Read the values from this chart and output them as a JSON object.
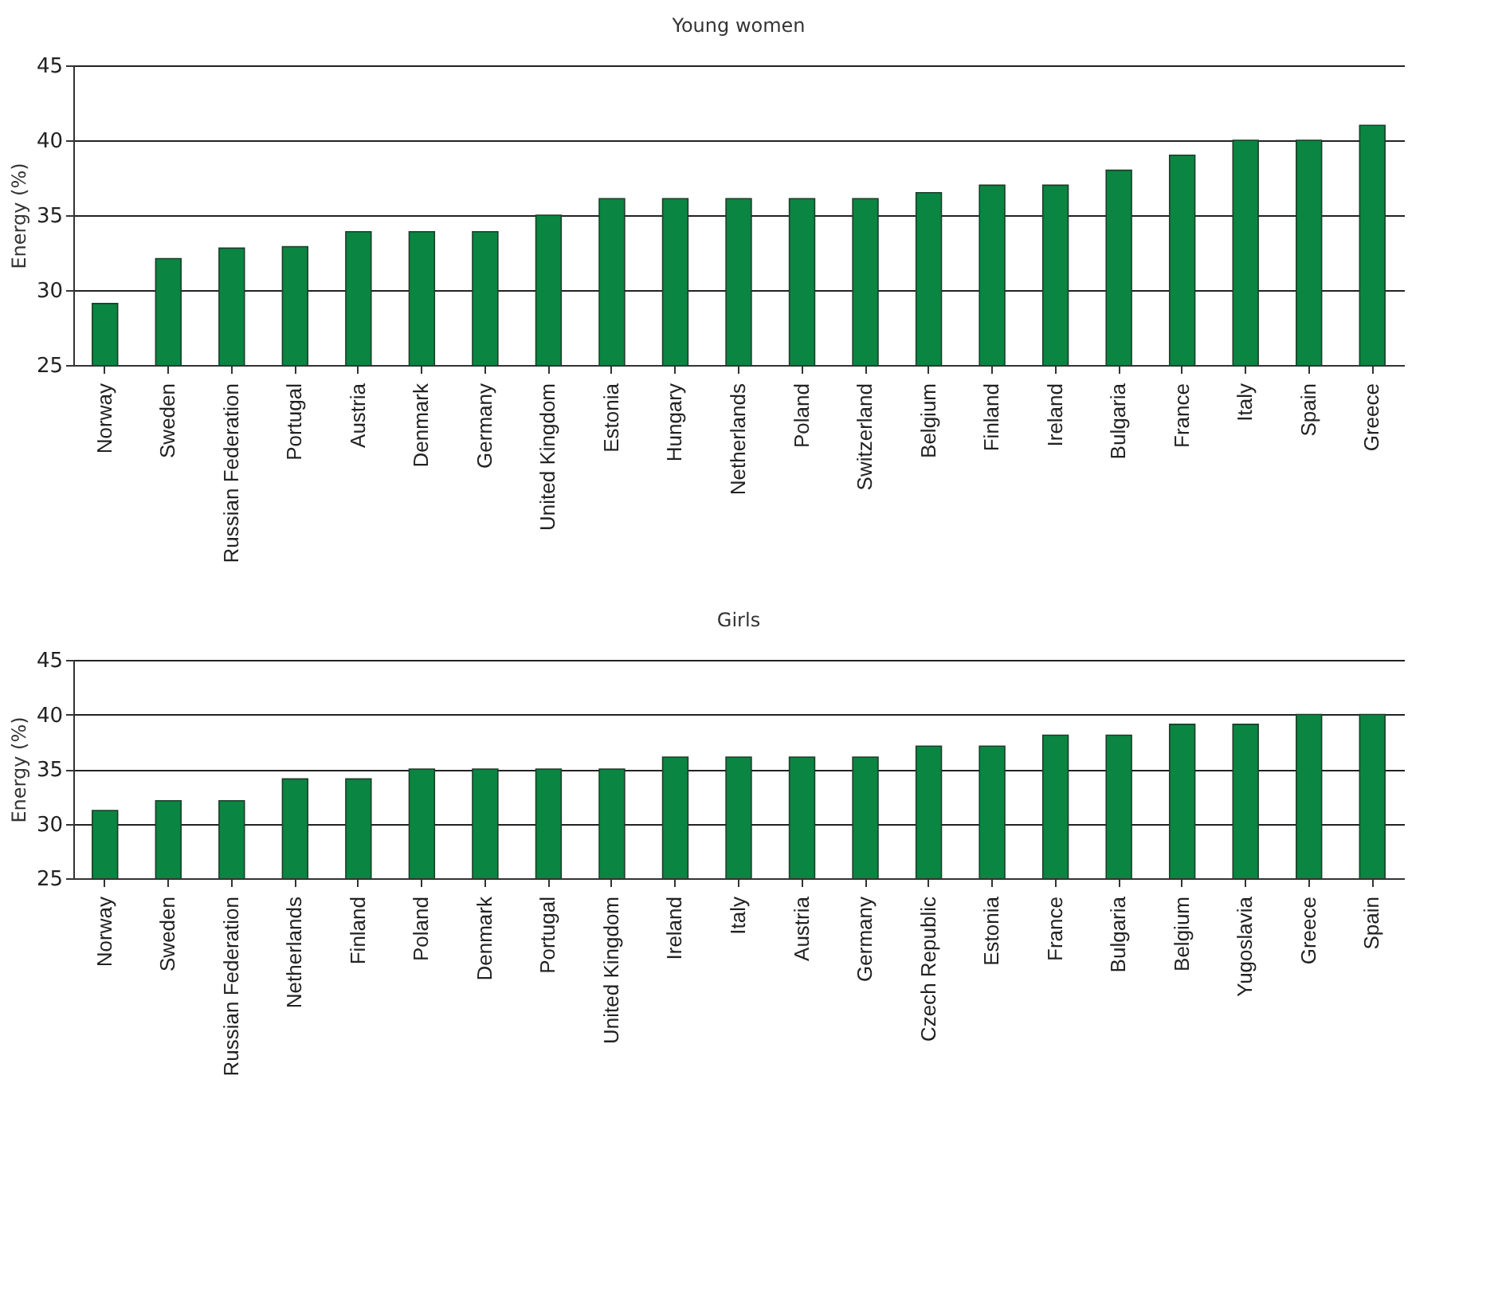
{
  "chart_data": [
    {
      "type": "bar",
      "title": "Young women",
      "ylabel": "Energy (%)",
      "categories": [
        "Norway",
        "Sweden",
        "Russian Federation",
        "Portugal",
        "Austria",
        "Denmark",
        "Germany",
        "United Kingdom",
        "Estonia",
        "Hungary",
        "Netherlands",
        "Poland",
        "Switzerland",
        "Belgium",
        "Finland",
        "Ireland",
        "Bulgaria",
        "France",
        "Italy",
        "Spain",
        "Greece"
      ],
      "values": [
        29.1,
        32.1,
        32.8,
        32.9,
        33.9,
        33.9,
        33.9,
        35,
        36.1,
        36.1,
        36.1,
        36.1,
        36.1,
        36.5,
        37,
        37,
        38,
        39,
        40,
        40,
        41
      ],
      "color": "#0b8542",
      "ylim": [
        25,
        45
      ],
      "yticks": [
        25,
        30,
        35,
        40,
        45
      ],
      "grid": "y"
    },
    {
      "type": "bar",
      "title": "Girls",
      "ylabel": "Energy (%)",
      "categories": [
        "Norway",
        "Sweden",
        "Russian Federation",
        "Netherlands",
        "Finland",
        "Poland",
        "Denmark",
        "Portugal",
        "United Kingdom",
        "Ireland",
        "Italy",
        "Austria",
        "Germany",
        "Czech Republic",
        "Estonia",
        "France",
        "Bulgaria",
        "Belgium",
        "Yugoslavia",
        "Greece",
        "Spain"
      ],
      "values": [
        31.2,
        32.1,
        32.1,
        34.1,
        34.1,
        35,
        35,
        35,
        35,
        36.1,
        36.1,
        36.1,
        36.1,
        37.1,
        37.1,
        38.1,
        38.1,
        39.1,
        39.1,
        40,
        40
      ],
      "color": "#0b8542",
      "ylim": [
        25,
        45
      ],
      "yticks": [
        25,
        30,
        35,
        40,
        45
      ],
      "grid": "y"
    }
  ]
}
